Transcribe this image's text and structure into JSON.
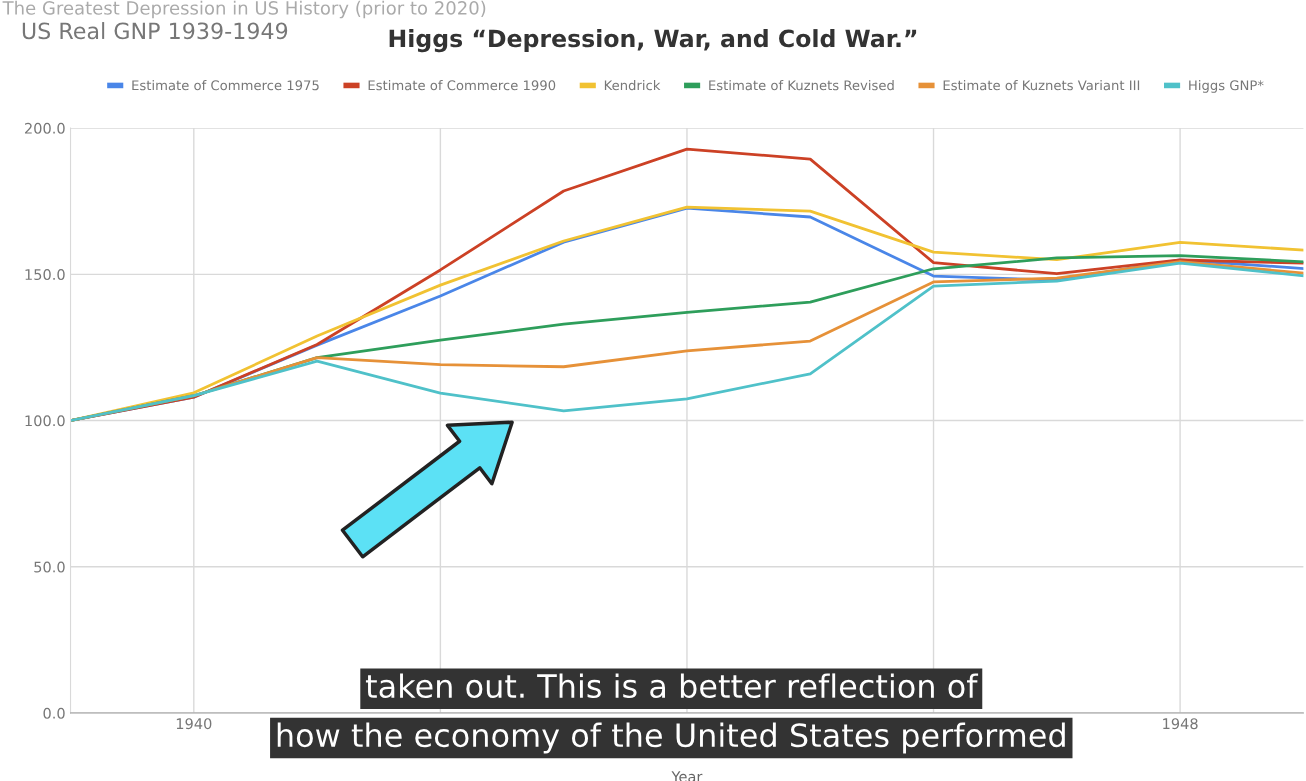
{
  "chart_data": {
    "type": "line",
    "title": "US Real GNP 1939-1949",
    "subtitle": "Higgs “Depression, War, and Cold War.”",
    "xlabel": "Year",
    "x": [
      1939,
      1940,
      1941,
      1942,
      1943,
      1944,
      1945,
      1946,
      1947,
      1948,
      1949
    ],
    "series": [
      {
        "name": "Estimate of Commerce 1975",
        "color": "#4a86e8",
        "values": [
          100,
          108,
          125.8,
          142.6,
          161,
          172.6,
          169.6,
          149.4,
          148,
          154.9,
          152
        ]
      },
      {
        "name": "Estimate of Commerce 1990",
        "color": "#cc4125",
        "values": [
          100,
          108,
          126,
          151.5,
          178.5,
          192.8,
          189.4,
          154,
          150.2,
          154.9,
          153.8
        ]
      },
      {
        "name": "Kendrick",
        "color": "#f1c232",
        "values": [
          100,
          109.5,
          128.9,
          146.3,
          161.4,
          173,
          171.6,
          157.6,
          155,
          160.9,
          158.3
        ]
      },
      {
        "name": "Estimate of Kuznets Revised",
        "color": "#2e9e5b",
        "values": [
          100,
          108.5,
          121.5,
          127.5,
          133,
          137,
          140.5,
          151.9,
          155.6,
          156.4,
          154.3
        ]
      },
      {
        "name": "Estimate of Kuznets Variant III",
        "color": "#e69138",
        "values": [
          100,
          108.5,
          121.5,
          119.1,
          118.4,
          123.8,
          127.2,
          147.4,
          148.7,
          154.3,
          150.4
        ]
      },
      {
        "name": "Higgs GNP*",
        "color": "#4fc1c9",
        "values": [
          100,
          108.5,
          120.3,
          109.4,
          103.3,
          107.4,
          116,
          146,
          147.7,
          153.8,
          149.5
        ]
      }
    ],
    "xlim": [
      1939,
      1949
    ],
    "xticks": [
      1940,
      {
        "value": 1942,
        "label": null
      },
      {
        "value": 1944,
        "label": null
      },
      {
        "value": 1946,
        "label": null
      },
      1948
    ],
    "ylim": [
      0,
      200
    ],
    "yticks": [
      {
        "value": 0,
        "label": "0.0"
      },
      {
        "value": 50,
        "label": "50.0"
      },
      {
        "value": 100,
        "label": "100.0"
      },
      {
        "value": 150,
        "label": "150.0"
      },
      {
        "value": 200,
        "label": "200.0"
      }
    ],
    "grid": true,
    "legend": "top",
    "marker": "none",
    "line_style": "solid",
    "annotations": [
      "The Greatest Depression in US History (prior to 2020)",
      "taken out. This is a better reflection of",
      "how the economy of the United States performed"
    ]
  }
}
